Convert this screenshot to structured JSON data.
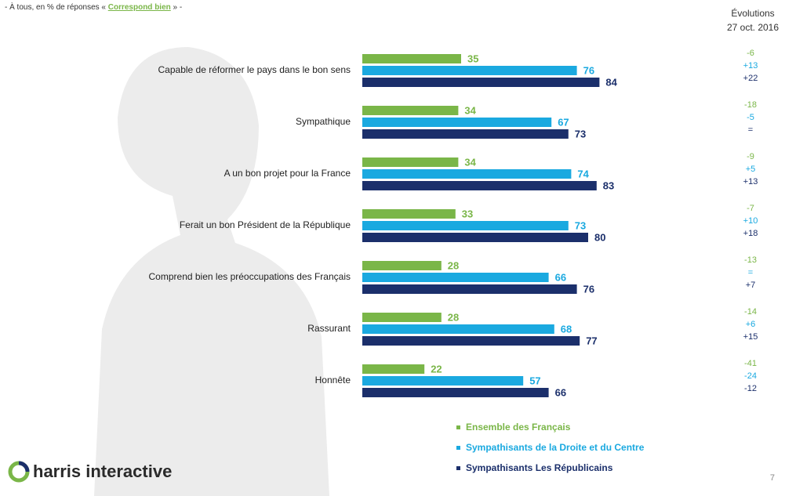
{
  "chart_data": {
    "type": "bar",
    "subtitle_prefix": "- À tous, en % de réponses «",
    "subtitle_highlight": "Correspond bien",
    "subtitle_suffix": "» -",
    "evolution_title": "Évolutions",
    "evolution_date": "27 oct. 2016",
    "categories": [
      "Capable de réformer le pays dans le bon sens",
      "Sympathique",
      "A un bon projet pour la France",
      "Ferait un bon Président de la République",
      "Comprend bien les préoccupations des Français",
      "Rassurant",
      "Honnête"
    ],
    "xlim": [
      0,
      100
    ],
    "series": [
      {
        "name": "Ensemble des Français",
        "color": "#7ab648",
        "values": [
          35,
          34,
          34,
          33,
          28,
          28,
          22
        ],
        "evolutions": [
          "-6",
          "-18",
          "-9",
          "-7",
          "-13",
          "-14",
          "-41"
        ]
      },
      {
        "name": "Sympathisants de la Droite et du Centre",
        "color": "#1aa9e0",
        "values": [
          76,
          67,
          74,
          73,
          66,
          68,
          57
        ],
        "evolutions": [
          "+13",
          "-5",
          "+5",
          "+10",
          "=",
          "+6",
          "-24"
        ]
      },
      {
        "name": "Sympathisants Les Républicains",
        "color": "#1b2f6b",
        "values": [
          84,
          73,
          83,
          80,
          76,
          77,
          66
        ],
        "evolutions": [
          "+22",
          "=",
          "+13",
          "+18",
          "+7",
          "+15",
          "-12"
        ]
      }
    ],
    "logo": "harris interactive",
    "page_number": "7"
  }
}
